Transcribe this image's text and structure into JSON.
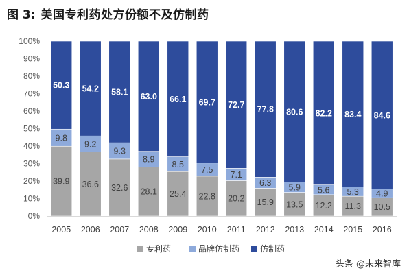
{
  "figure": {
    "label": "图 3:",
    "title": "美国专利药处方份额不及仿制药"
  },
  "watermark": "头条 @未来智库",
  "chart_data": {
    "type": "bar",
    "stacked": true,
    "categories": [
      "2005",
      "2006",
      "2007",
      "2008",
      "2009",
      "2010",
      "2011",
      "2012",
      "2013",
      "2014",
      "2015",
      "2016"
    ],
    "series": [
      {
        "name": "专利药",
        "color": "#a6a6a6",
        "label_color": "#404040",
        "values": [
          39.9,
          36.6,
          32.6,
          28.1,
          25.4,
          22.8,
          20.2,
          15.9,
          13.5,
          12.2,
          11.3,
          10.5
        ]
      },
      {
        "name": "品牌仿制药",
        "color": "#8eaadb",
        "label_color": "#404040",
        "values": [
          9.8,
          9.2,
          9.3,
          8.9,
          8.5,
          7.5,
          7.1,
          6.3,
          5.9,
          5.6,
          5.3,
          4.9
        ]
      },
      {
        "name": "仿制药",
        "color": "#2e4c9c",
        "label_color": "#ffffff",
        "values": [
          50.3,
          54.2,
          58.1,
          63.0,
          66.1,
          69.7,
          72.7,
          77.8,
          80.6,
          82.2,
          83.4,
          84.6
        ]
      }
    ],
    "value_labels": [
      [
        "39.9",
        "36.6",
        "32.6",
        "28.1",
        "25.4",
        "22.8",
        "20.2",
        "15.9",
        "13.5",
        "12.2",
        "11.3",
        "10.5"
      ],
      [
        "9.8",
        "9.2",
        "9.3",
        "8.9",
        "8.5",
        "7.5",
        "7.1",
        "6.3",
        "5.9",
        "5.6",
        "5.3",
        "4.9"
      ],
      [
        "50.3",
        "54.2",
        "58.1",
        "63.0",
        "66.1",
        "69.7",
        "72.7",
        "77.8",
        "80.6",
        "82.2",
        "83.4",
        "84.6"
      ]
    ],
    "y_ticks": [
      "0%",
      "10%",
      "20%",
      "30%",
      "40%",
      "50%",
      "60%",
      "70%",
      "80%",
      "90%",
      "100%"
    ],
    "ylim": [
      0,
      100
    ],
    "grid": false,
    "legend_position": "bottom"
  }
}
